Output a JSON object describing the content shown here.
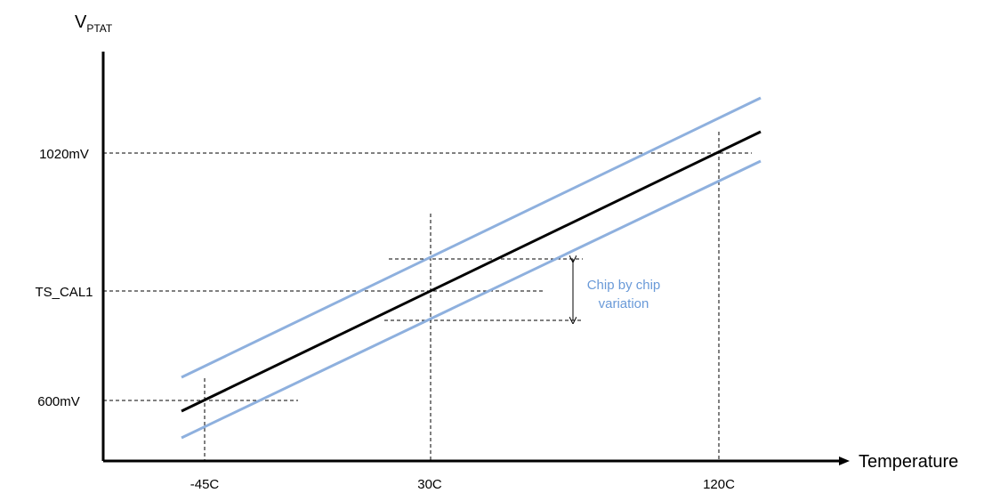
{
  "diagram": {
    "y_axis": {
      "label_main": "V",
      "label_sub": "PTAT",
      "ticks": [
        "1020mV",
        "TS_CAL1",
        "600mV"
      ]
    },
    "x_axis": {
      "label": "Temperature",
      "ticks": [
        "-45C",
        "30C",
        "120C"
      ]
    },
    "annotation": {
      "line1": "Chip by chip",
      "line2": "variation"
    },
    "colors": {
      "nominal_line": "#000000",
      "variation_lines": "#8EB0DE",
      "annotation_text": "#6A9AD8"
    }
  }
}
